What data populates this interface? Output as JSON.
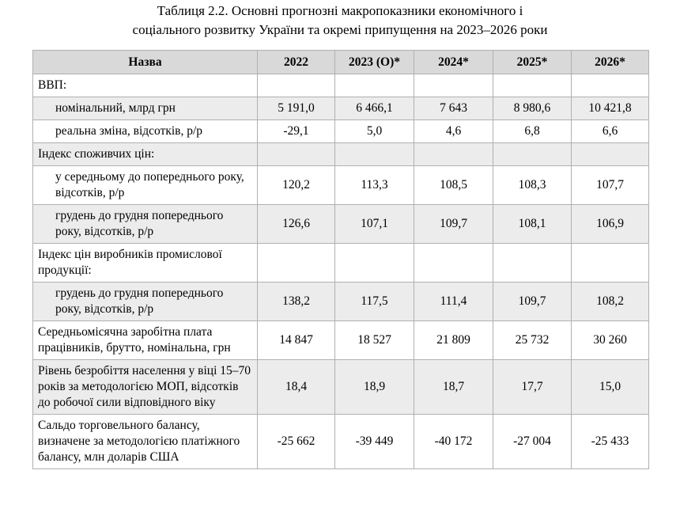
{
  "title_lines": [
    "Таблиця 2.2. Основні прогнозні макропоказники економічного і",
    "соціального розвитку України та окремі припущення на 2023–2026 роки"
  ],
  "table": {
    "header": [
      "Назва",
      "2022",
      "2023 (О)*",
      "2024*",
      "2025*",
      "2026*"
    ],
    "rows": [
      {
        "name": "ВВП:"
      },
      {
        "name": "номінальний, млрд грн",
        "indent": true,
        "values": [
          "5 191,0",
          "6 466,1",
          "7 643",
          "8 980,6",
          "10 421,8"
        ]
      },
      {
        "name": "реальна зміна, відсотків, р/р",
        "indent": true,
        "values": [
          "-29,1",
          "5,0",
          "4,6",
          "6,8",
          "6,6"
        ]
      },
      {
        "name": "Індекс споживчих цін:"
      },
      {
        "name": "у середньому до попереднього року, відсотків, р/р",
        "indent": true,
        "values": [
          "120,2",
          "113,3",
          "108,5",
          "108,3",
          "107,7"
        ]
      },
      {
        "name": "грудень до грудня попереднього року, відсотків, р/р",
        "indent": true,
        "values": [
          "126,6",
          "107,1",
          "109,7",
          "108,1",
          "106,9"
        ]
      },
      {
        "name": "Індекс цін виробників промислової продукції:"
      },
      {
        "name": "грудень до грудня попереднього року, відсотків, р/р",
        "indent": true,
        "values": [
          "138,2",
          "117,5",
          "111,4",
          "109,7",
          "108,2"
        ]
      },
      {
        "name": "Середньомісячна заробітна плата працівників, брутто, номінальна, грн",
        "values": [
          "14 847",
          "18 527",
          "21 809",
          "25 732",
          "30 260"
        ]
      },
      {
        "name": "Рівень безробіття населення у віці 15–70 років за методологією МОП, відсотків до робочої сили відповідного віку",
        "values": [
          "18,4",
          "18,9",
          "18,7",
          "17,7",
          "15,0"
        ]
      },
      {
        "name": "Сальдо торговельного балансу, визначене за методологією платіжного балансу, млн доларів США",
        "values": [
          "-25 662",
          "-39 449",
          "-40 172",
          "-27 004",
          "-25 433"
        ]
      }
    ]
  }
}
